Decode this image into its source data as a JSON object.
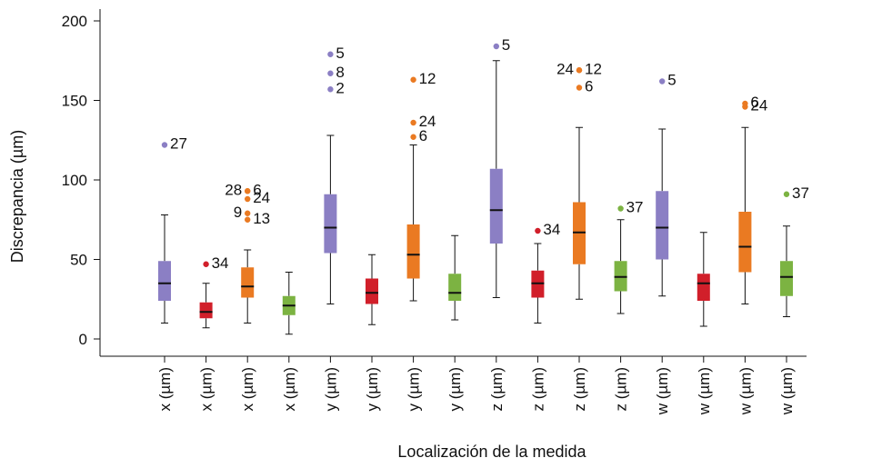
{
  "chart_data": {
    "type": "box",
    "xlabel": "Localización de la medida",
    "ylabel": "Discrepancia (µm)",
    "ylim": [
      -10,
      210
    ],
    "yticks": [
      0,
      50,
      100,
      150,
      200
    ],
    "grid": false,
    "legend": "none",
    "colors": {
      "x": "#8b7fc4",
      "y": "#d11f2a",
      "z": "#ea7a22",
      "w": "#7cb342"
    },
    "boxes": [
      {
        "label": "x (µm)",
        "color_key": "x",
        "min": 10,
        "q1": 24,
        "median": 35,
        "q3": 49,
        "max": 78,
        "outliers": [
          {
            "value": 122,
            "labels": [
              "27"
            ],
            "side": "right"
          }
        ]
      },
      {
        "label": "x (µm)",
        "color_key": "y",
        "min": 7,
        "q1": 13,
        "median": 17,
        "q3": 23,
        "max": 35,
        "outliers": [
          {
            "value": 47,
            "labels": [
              "34"
            ],
            "side": "right"
          }
        ]
      },
      {
        "label": "x (µm)",
        "color_key": "z",
        "min": 10,
        "q1": 26,
        "median": 33,
        "q3": 45,
        "max": 56,
        "outliers": [
          {
            "value": 93,
            "labels": [
              "6"
            ],
            "side": "right"
          },
          {
            "value": 93,
            "labels": [
              "28"
            ],
            "side": "left"
          },
          {
            "value": 88,
            "labels": [
              "24"
            ],
            "side": "right"
          },
          {
            "value": 79,
            "labels": [
              "9"
            ],
            "side": "left"
          },
          {
            "value": 75,
            "labels": [
              "13"
            ],
            "side": "right"
          }
        ]
      },
      {
        "label": "x (µm)",
        "color_key": "w",
        "min": 3,
        "q1": 15,
        "median": 21,
        "q3": 27,
        "max": 42,
        "outliers": []
      },
      {
        "label": "y (µm)",
        "color_key": "x",
        "min": 22,
        "q1": 54,
        "median": 70,
        "q3": 91,
        "max": 128,
        "outliers": [
          {
            "value": 179,
            "labels": [
              "5"
            ],
            "side": "right"
          },
          {
            "value": 167,
            "labels": [
              "8"
            ],
            "side": "right"
          },
          {
            "value": 157,
            "labels": [
              "2"
            ],
            "side": "right"
          }
        ]
      },
      {
        "label": "y (µm)",
        "color_key": "y",
        "min": 9,
        "q1": 22,
        "median": 29,
        "q3": 38,
        "max": 53,
        "outliers": []
      },
      {
        "label": "y (µm)",
        "color_key": "z",
        "min": 24,
        "q1": 38,
        "median": 53,
        "q3": 72,
        "max": 122,
        "outliers": [
          {
            "value": 163,
            "labels": [
              "12"
            ],
            "side": "right"
          },
          {
            "value": 136,
            "labels": [
              "24"
            ],
            "side": "right"
          },
          {
            "value": 127,
            "labels": [
              "6"
            ],
            "side": "right"
          }
        ]
      },
      {
        "label": "y (µm)",
        "color_key": "w",
        "min": 12,
        "q1": 24,
        "median": 29,
        "q3": 41,
        "max": 65,
        "outliers": []
      },
      {
        "label": "z (µm)",
        "color_key": "x",
        "min": 26,
        "q1": 60,
        "median": 81,
        "q3": 107,
        "max": 175,
        "outliers": [
          {
            "value": 184,
            "labels": [
              "5"
            ],
            "side": "right"
          }
        ]
      },
      {
        "label": "z (µm)",
        "color_key": "y",
        "min": 10,
        "q1": 26,
        "median": 35,
        "q3": 43,
        "max": 60,
        "outliers": [
          {
            "value": 68,
            "labels": [
              "34"
            ],
            "side": "right"
          }
        ]
      },
      {
        "label": "z (µm)",
        "color_key": "z",
        "min": 25,
        "q1": 47,
        "median": 67,
        "q3": 86,
        "max": 133,
        "outliers": [
          {
            "value": 169,
            "labels": [
              "12"
            ],
            "side": "right"
          },
          {
            "value": 169,
            "labels": [
              "24"
            ],
            "side": "left"
          },
          {
            "value": 158,
            "labels": [
              "6"
            ],
            "side": "right"
          }
        ]
      },
      {
        "label": "z (µm)",
        "color_key": "w",
        "min": 16,
        "q1": 30,
        "median": 39,
        "q3": 49,
        "max": 75,
        "outliers": [
          {
            "value": 82,
            "labels": [
              "37"
            ],
            "side": "right"
          }
        ]
      },
      {
        "label": "w (µm)",
        "color_key": "x",
        "min": 27,
        "q1": 50,
        "median": 70,
        "q3": 93,
        "max": 132,
        "outliers": [
          {
            "value": 162,
            "labels": [
              "5"
            ],
            "side": "right"
          }
        ]
      },
      {
        "label": "w (µm)",
        "color_key": "y",
        "min": 8,
        "q1": 24,
        "median": 35,
        "q3": 41,
        "max": 67,
        "outliers": []
      },
      {
        "label": "w (µm)",
        "color_key": "z",
        "min": 22,
        "q1": 42,
        "median": 58,
        "q3": 80,
        "max": 133,
        "outliers": [
          {
            "value": 148,
            "labels": [
              "6"
            ],
            "side": "right"
          },
          {
            "value": 146,
            "labels": [
              "24"
            ],
            "side": "right"
          }
        ]
      },
      {
        "label": "w (µm)",
        "color_key": "w",
        "min": 14,
        "q1": 27,
        "median": 39,
        "q3": 49,
        "max": 71,
        "outliers": [
          {
            "value": 91,
            "labels": [
              "37"
            ],
            "side": "right"
          }
        ]
      }
    ]
  }
}
